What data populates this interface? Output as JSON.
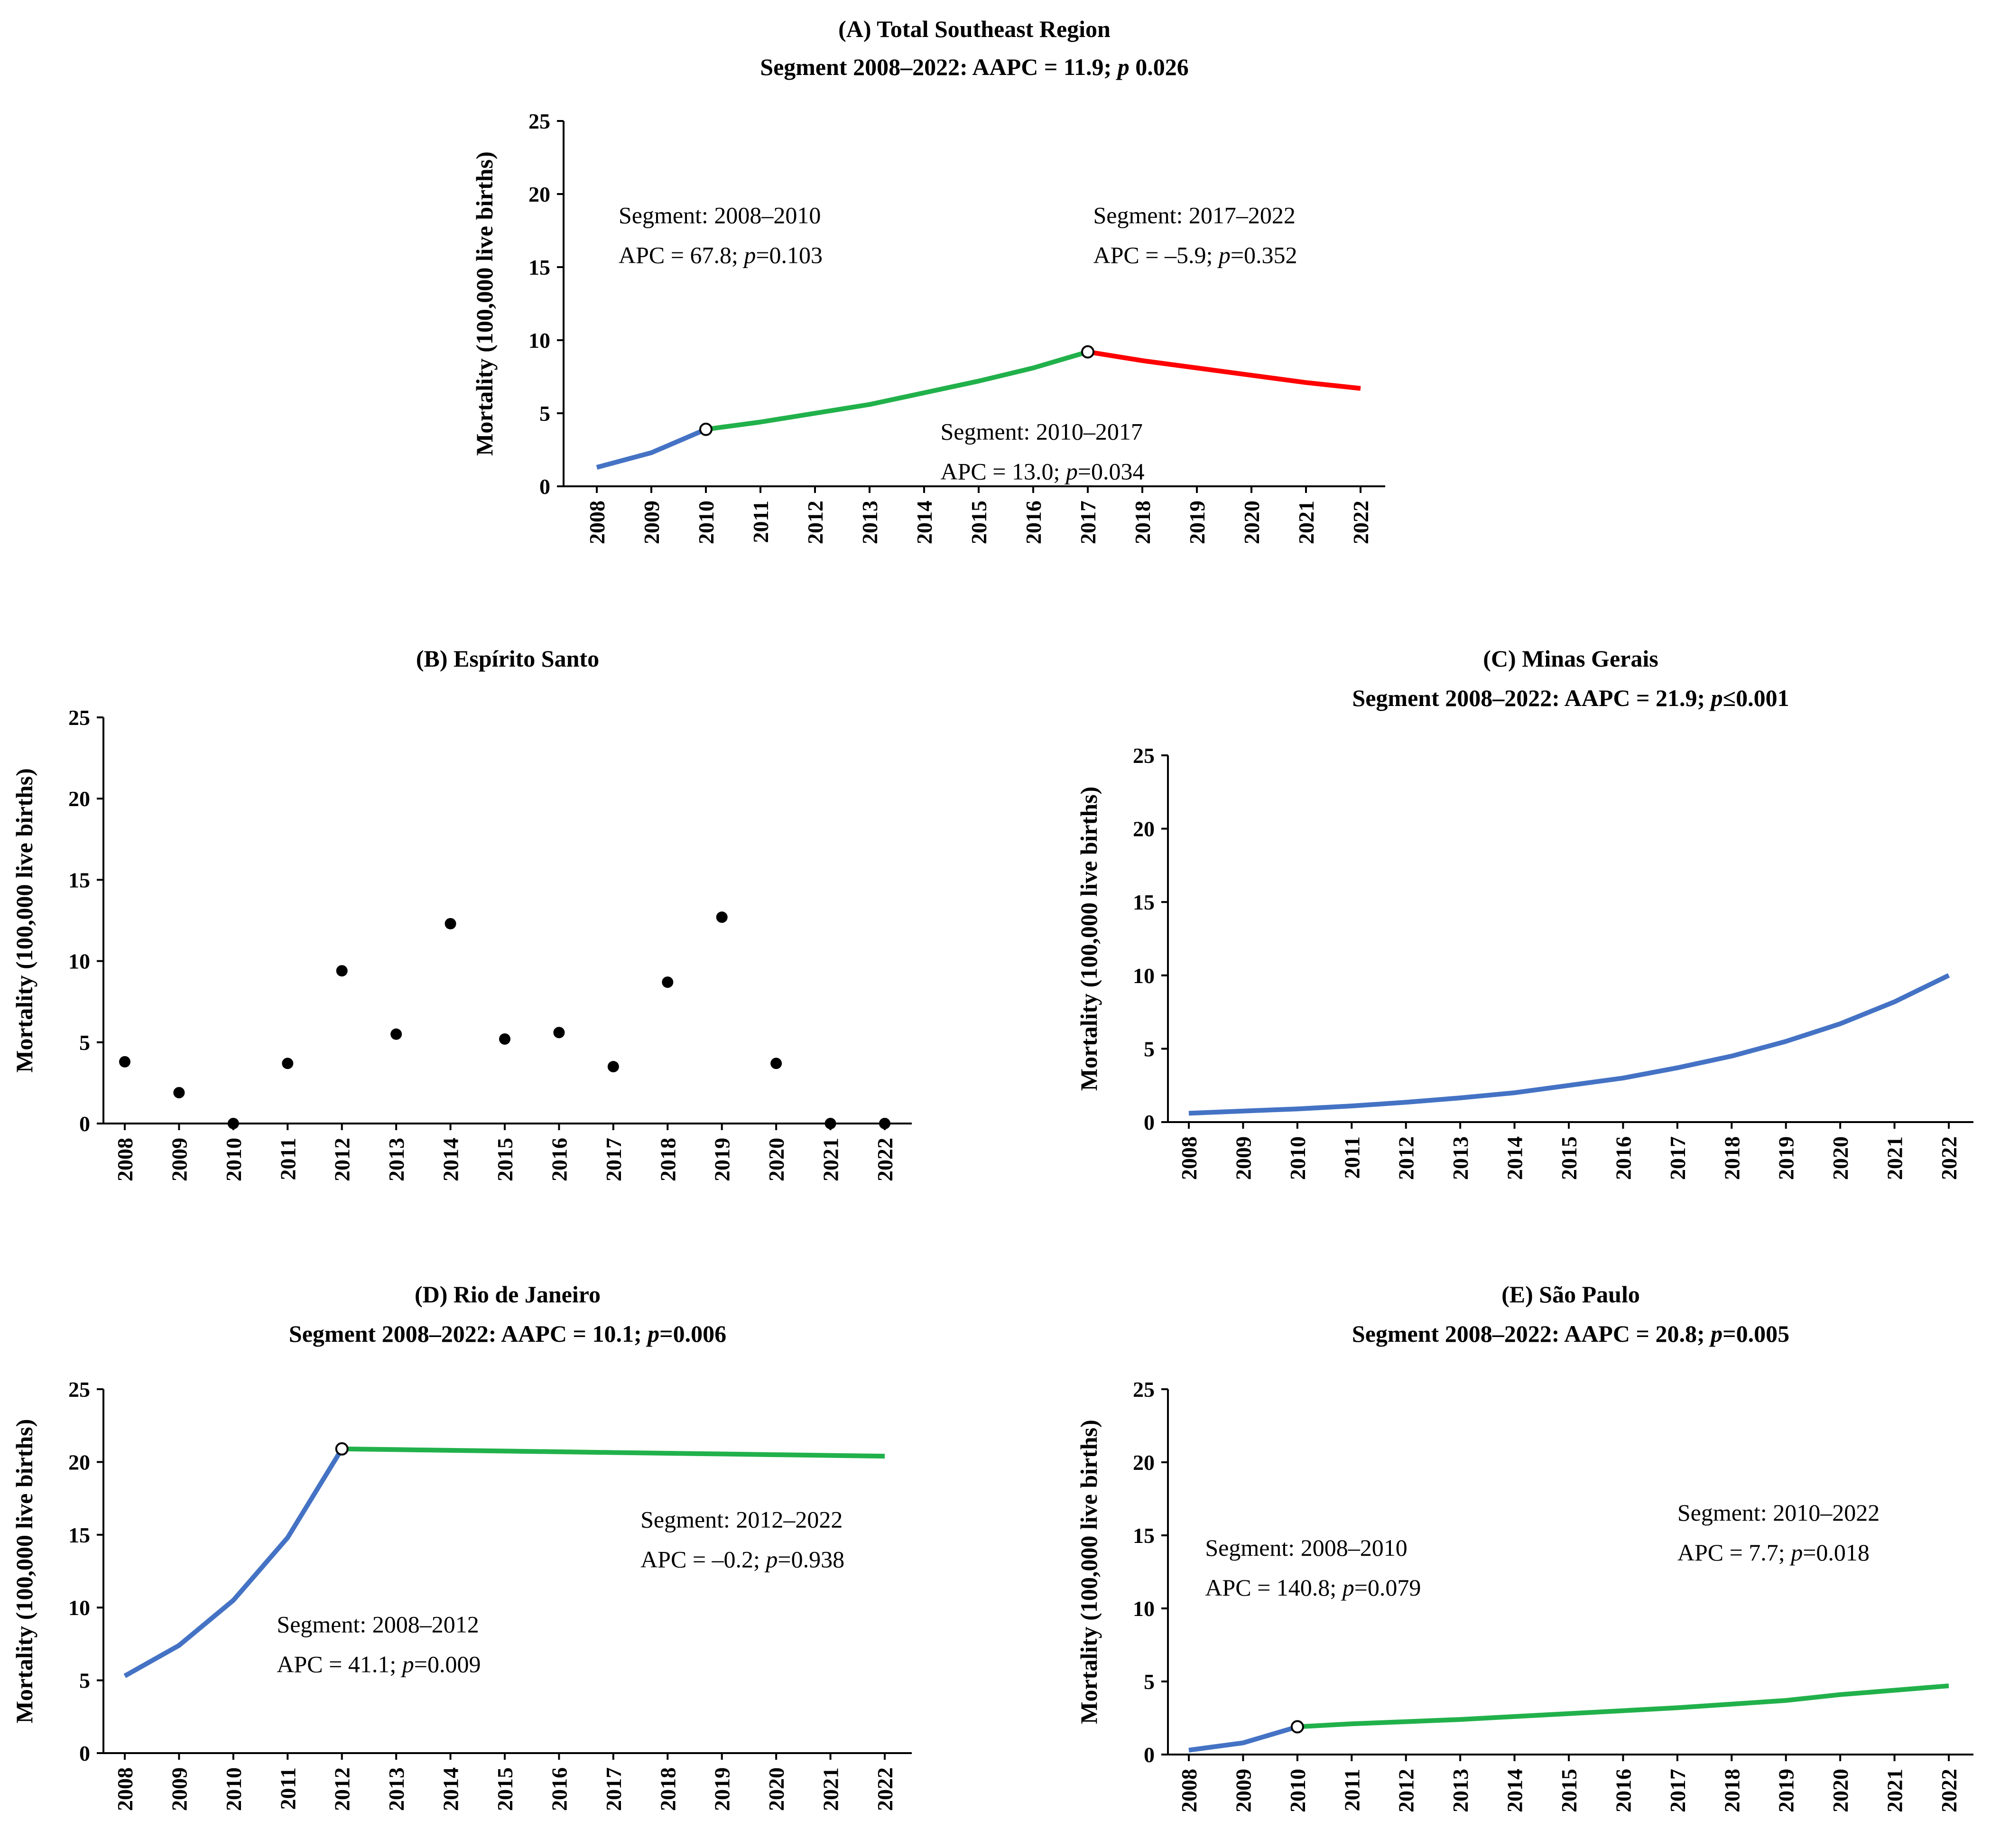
{
  "chart_data": [
    {
      "id": "A",
      "type": "line",
      "title": "(A) Total Southeast Region",
      "subtitle": {
        "pre": "Segment 2008–2022: AAPC = 11.9; ",
        "p": "p",
        "post": " 0.026"
      },
      "ylabel": "Mortality (100,000 live births)",
      "ylim": [
        0,
        25
      ],
      "yticks": [
        0,
        5,
        10,
        15,
        20,
        25
      ],
      "categories": [
        "2008",
        "2009",
        "2010",
        "2011",
        "2012",
        "2013",
        "2014",
        "2015",
        "2016",
        "2017",
        "2018",
        "2019",
        "2020",
        "2021",
        "2022"
      ],
      "series": [
        {
          "name": "Segment 2008–2010",
          "color": "#4472C4",
          "x": [
            2008,
            2009,
            2010
          ],
          "values": [
            1.3,
            2.3,
            3.9
          ]
        },
        {
          "name": "Segment 2010–2017",
          "color": "#21B14B",
          "x": [
            2010,
            2011,
            2012,
            2013,
            2014,
            2015,
            2016,
            2017
          ],
          "values": [
            3.9,
            4.4,
            5.0,
            5.6,
            6.4,
            7.2,
            8.1,
            9.2
          ]
        },
        {
          "name": "Segment 2017–2022",
          "color": "#FF0000",
          "x": [
            2017,
            2018,
            2019,
            2020,
            2021,
            2022
          ],
          "values": [
            9.2,
            8.6,
            8.1,
            7.6,
            7.1,
            6.7
          ]
        }
      ],
      "joinpoints": [
        {
          "x": 2010,
          "y": 3.9
        },
        {
          "x": 2017,
          "y": 9.2
        }
      ],
      "annotations": [
        {
          "l1": "Segment: 2008–2010",
          "pre": "APC = 67.8; ",
          "post": "=0.103",
          "x": 2008.4,
          "y": 18.0
        },
        {
          "l1": "Segment: 2017–2022",
          "pre": "APC = –5.9; ",
          "post": "=0.352",
          "x": 2017.1,
          "y": 18.0
        },
        {
          "l1": "Segment: 2010–2017",
          "pre": "APC = 13.0; ",
          "post": "=0.034",
          "x": 2014.3,
          "y": 3.2
        }
      ]
    },
    {
      "id": "B",
      "type": "scatter",
      "title": "(B) Espírito Santo",
      "ylabel": "Mortality (100,000 live births)",
      "ylim": [
        0,
        25
      ],
      "yticks": [
        0,
        5,
        10,
        15,
        20,
        25
      ],
      "categories": [
        "2008",
        "2009",
        "2010",
        "2011",
        "2012",
        "2013",
        "2014",
        "2015",
        "2016",
        "2017",
        "2018",
        "2019",
        "2020",
        "2021",
        "2022"
      ],
      "points": {
        "x": [
          2008,
          2009,
          2010,
          2011,
          2012,
          2013,
          2014,
          2015,
          2016,
          2017,
          2018,
          2019,
          2020,
          2021,
          2022
        ],
        "values": [
          3.8,
          1.9,
          0.0,
          3.7,
          9.4,
          5.5,
          12.3,
          5.2,
          5.6,
          3.5,
          8.7,
          12.7,
          3.7,
          0.0,
          0.0
        ]
      }
    },
    {
      "id": "C",
      "type": "line",
      "title": "(C) Minas Gerais",
      "subtitle": {
        "pre": "Segment 2008–2022: AAPC = 21.9; ",
        "p": "p",
        "post": "≤0.001"
      },
      "ylabel": "Mortality (100,000 live births)",
      "ylim": [
        0,
        25
      ],
      "yticks": [
        0,
        5,
        10,
        15,
        20,
        25
      ],
      "categories": [
        "2008",
        "2009",
        "2010",
        "2011",
        "2012",
        "2013",
        "2014",
        "2015",
        "2016",
        "2017",
        "2018",
        "2019",
        "2020",
        "2021",
        "2022"
      ],
      "series": [
        {
          "name": "Segment 2008–2022",
          "color": "#4472C4",
          "x": [
            2008,
            2009,
            2010,
            2011,
            2012,
            2013,
            2014,
            2015,
            2016,
            2017,
            2018,
            2019,
            2020,
            2021,
            2022
          ],
          "values": [
            0.6,
            0.75,
            0.9,
            1.1,
            1.35,
            1.65,
            2.0,
            2.5,
            3.0,
            3.7,
            4.5,
            5.5,
            6.7,
            8.2,
            10.0
          ]
        }
      ],
      "joinpoints": [],
      "annotations": []
    },
    {
      "id": "D",
      "type": "line",
      "title": "(D) Rio de Janeiro",
      "subtitle": {
        "pre": "Segment 2008–2022: AAPC = 10.1; ",
        "p": "p",
        "post": "=0.006"
      },
      "ylabel": "Mortality (100,000 live births)",
      "ylim": [
        0,
        25
      ],
      "yticks": [
        0,
        5,
        10,
        15,
        20,
        25
      ],
      "categories": [
        "2008",
        "2009",
        "2010",
        "2011",
        "2012",
        "2013",
        "2014",
        "2015",
        "2016",
        "2017",
        "2018",
        "2019",
        "2020",
        "2021",
        "2022"
      ],
      "series": [
        {
          "name": "Segment 2008–2012",
          "color": "#4472C4",
          "x": [
            2008,
            2009,
            2010,
            2011,
            2012
          ],
          "values": [
            5.3,
            7.4,
            10.5,
            14.8,
            20.9
          ]
        },
        {
          "name": "Segment 2012–2022",
          "color": "#21B14B",
          "x": [
            2012,
            2013,
            2014,
            2015,
            2016,
            2017,
            2018,
            2019,
            2020,
            2021,
            2022
          ],
          "values": [
            20.9,
            20.85,
            20.8,
            20.75,
            20.7,
            20.65,
            20.6,
            20.55,
            20.5,
            20.45,
            20.4
          ]
        }
      ],
      "joinpoints": [
        {
          "x": 2012,
          "y": 20.9
        }
      ],
      "annotations": [
        {
          "l1": "Segment: 2012–2022",
          "pre": "APC = –0.2; ",
          "post": "=0.938",
          "x": 2017.5,
          "y": 15.5
        },
        {
          "l1": "Segment: 2008–2012",
          "pre": "APC = 41.1; ",
          "post": "=0.009",
          "x": 2010.8,
          "y": 8.3
        }
      ]
    },
    {
      "id": "E",
      "type": "line",
      "title": "(E) São Paulo",
      "subtitle": {
        "pre": "Segment 2008–2022: AAPC = 20.8; ",
        "p": "p",
        "post": "=0.005"
      },
      "ylabel": "Mortality (100,000 live births)",
      "ylim": [
        0,
        25
      ],
      "yticks": [
        0,
        5,
        10,
        15,
        20,
        25
      ],
      "categories": [
        "2008",
        "2009",
        "2010",
        "2011",
        "2012",
        "2013",
        "2014",
        "2015",
        "2016",
        "2017",
        "2018",
        "2019",
        "2020",
        "2021",
        "2022"
      ],
      "series": [
        {
          "name": "Segment 2008–2010",
          "color": "#4472C4",
          "x": [
            2008,
            2009,
            2010
          ],
          "values": [
            0.3,
            0.8,
            1.9
          ]
        },
        {
          "name": "Segment 2010–2022",
          "color": "#21B14B",
          "x": [
            2010,
            2011,
            2012,
            2013,
            2014,
            2015,
            2016,
            2017,
            2018,
            2019,
            2020,
            2021,
            2022
          ],
          "values": [
            1.9,
            2.1,
            2.25,
            2.4,
            2.6,
            2.8,
            3.0,
            3.2,
            3.45,
            3.7,
            4.1,
            4.4,
            4.7
          ]
        }
      ],
      "joinpoints": [
        {
          "x": 2010,
          "y": 1.9
        }
      ],
      "annotations": [
        {
          "l1": "Segment: 2008–2010",
          "pre": "APC = 140.8; ",
          "post": "=0.079",
          "x": 2008.3,
          "y": 13.6
        },
        {
          "l1": "Segment: 2010–2022",
          "pre": "APC = 7.7; ",
          "post": "=0.018",
          "x": 2017.0,
          "y": 16.0
        }
      ]
    }
  ]
}
